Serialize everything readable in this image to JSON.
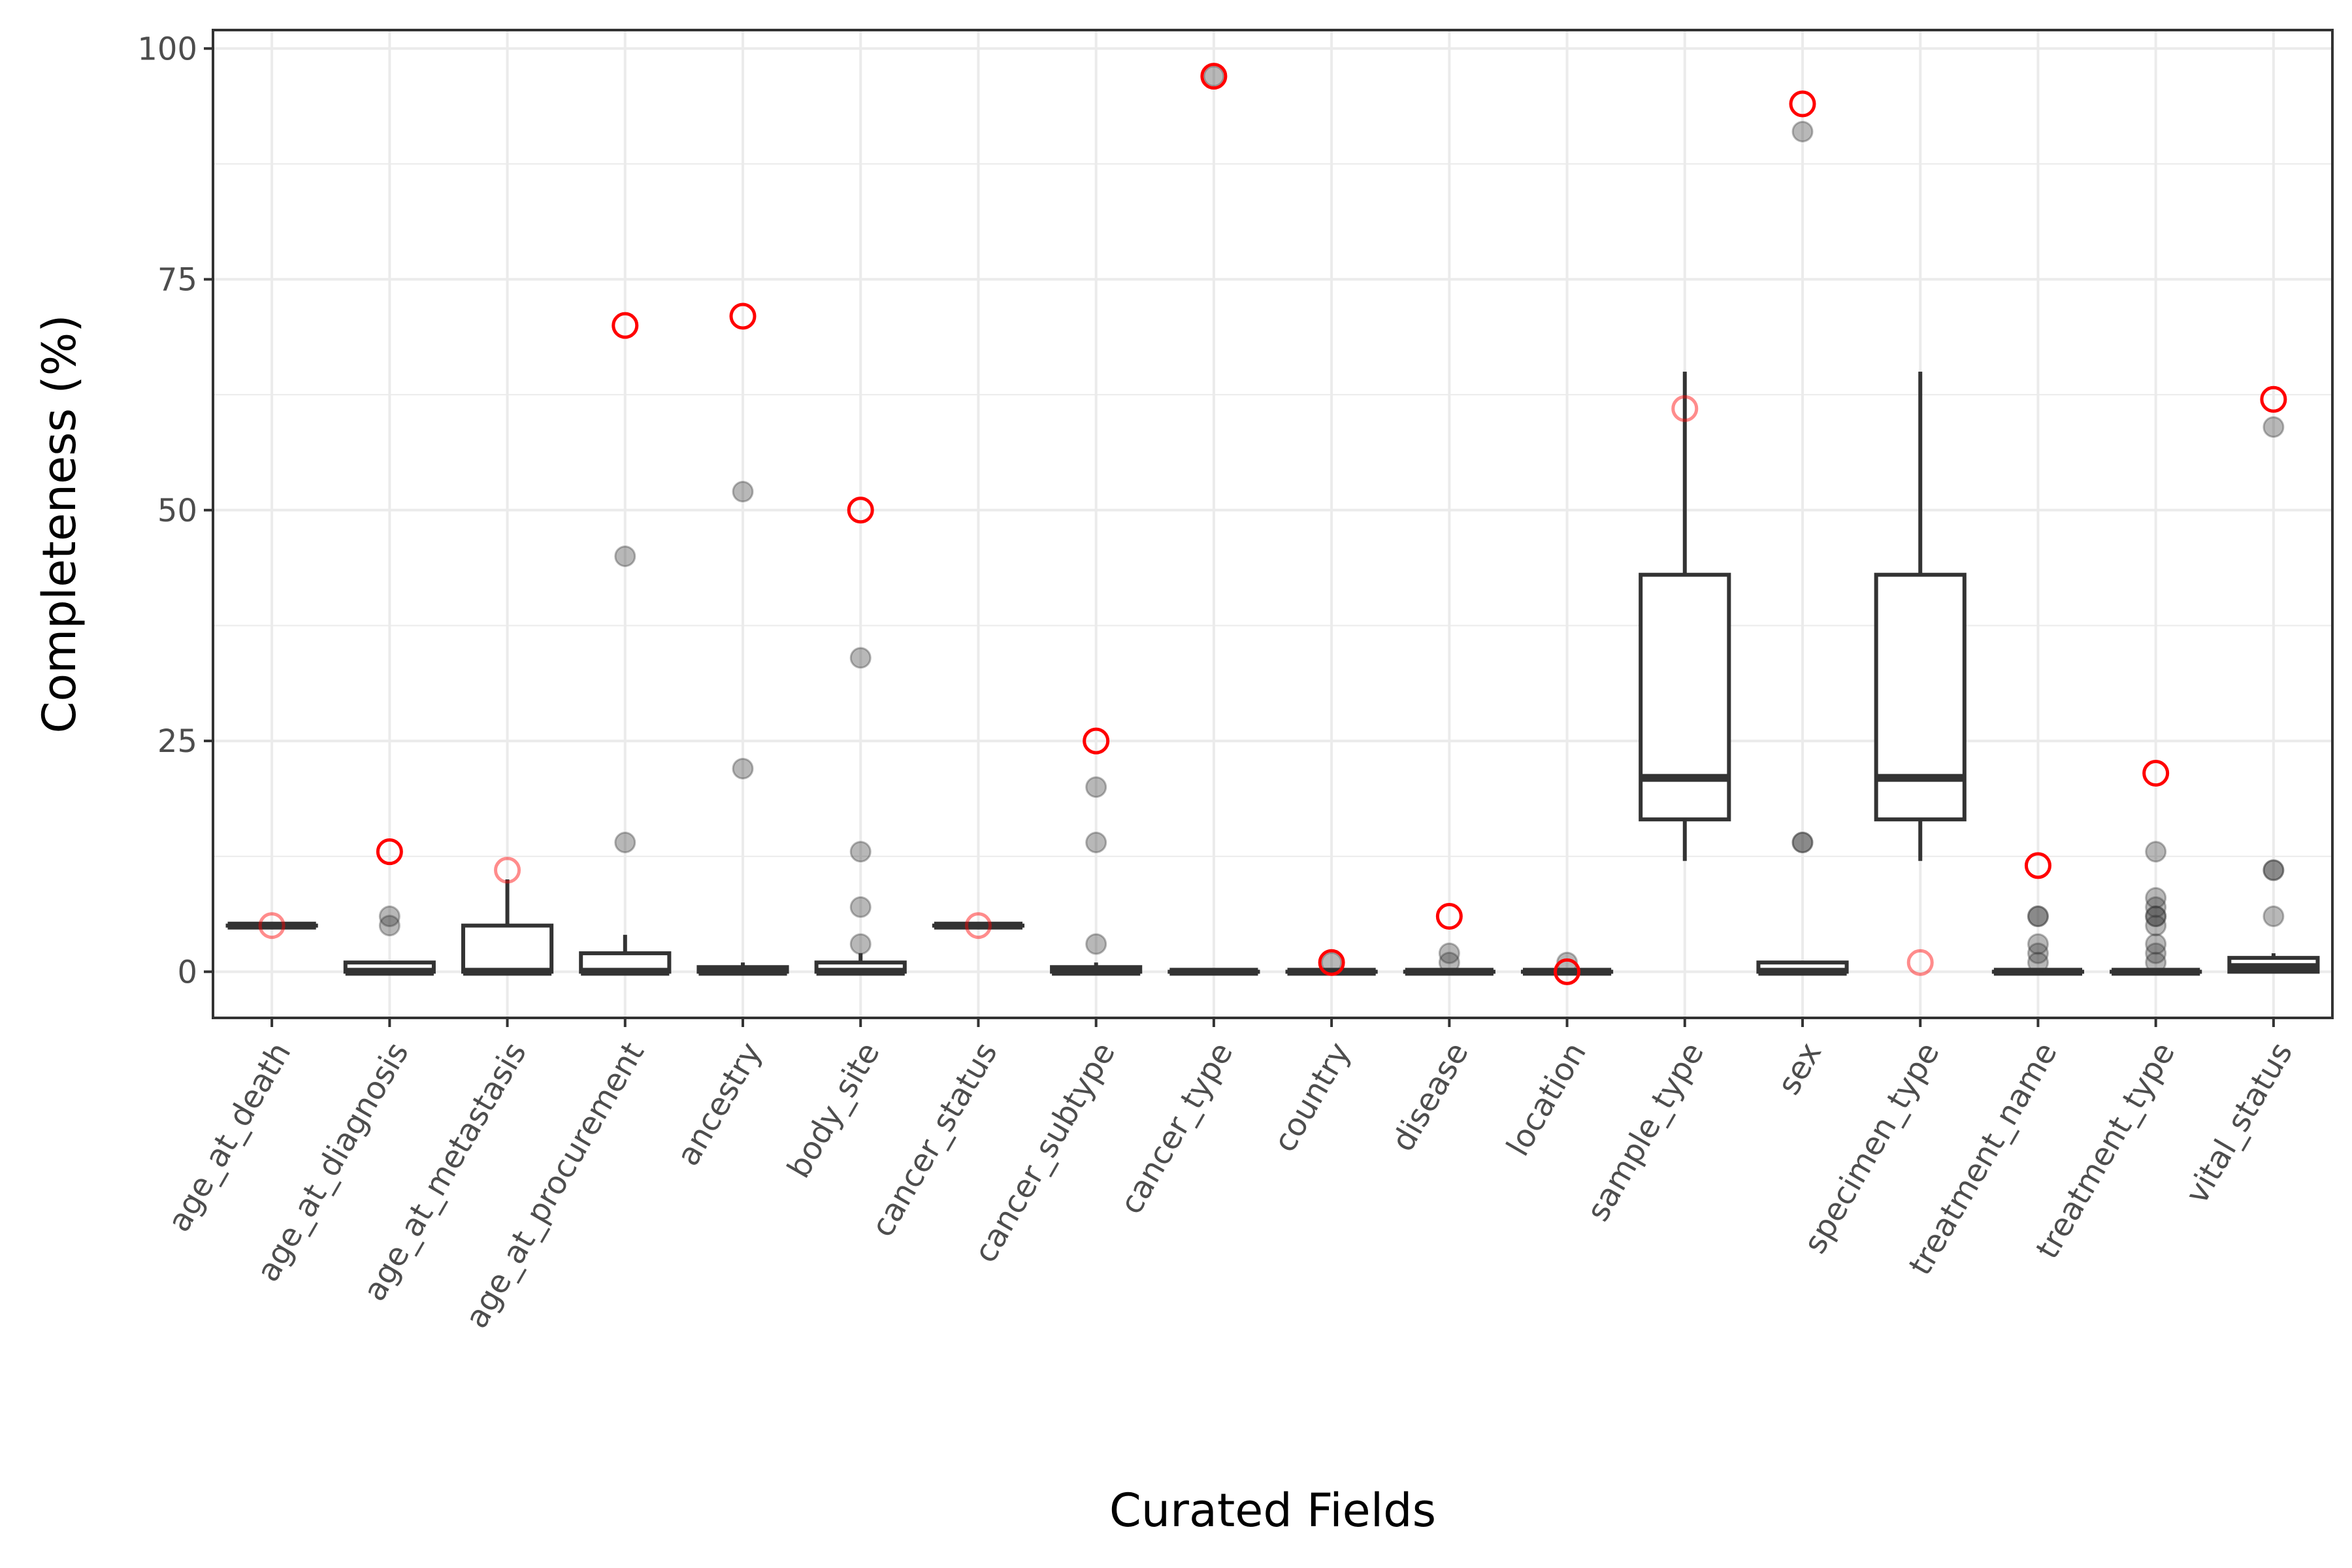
{
  "chart_data": {
    "type": "box",
    "xlabel": "Curated Fields",
    "ylabel": "Completeness (%)",
    "ylim": [
      -5,
      102
    ],
    "yticks": [
      0,
      25,
      50,
      75,
      100
    ],
    "grid": true,
    "categories": [
      "age_at_death",
      "age_at_diagnosis",
      "age_at_metastasis",
      "age_at_procurement",
      "ancestry",
      "body_site",
      "cancer_status",
      "cancer_subtype",
      "cancer_type",
      "country",
      "disease",
      "location",
      "sample_type",
      "sex",
      "specimen_type",
      "treatment_name",
      "treatment_type",
      "vital_status"
    ],
    "boxes": [
      {
        "min": 5,
        "q1": 5,
        "median": 5,
        "q3": 5,
        "max": 5,
        "outliers": []
      },
      {
        "min": 0,
        "q1": 0,
        "median": 0,
        "q3": 1,
        "max": 1,
        "outliers": [
          5,
          6
        ]
      },
      {
        "min": 0,
        "q1": 0,
        "median": 0,
        "q3": 5,
        "max": 10,
        "outliers": []
      },
      {
        "min": 0,
        "q1": 0,
        "median": 0,
        "q3": 2,
        "max": 4,
        "outliers": [
          14,
          45
        ]
      },
      {
        "min": 0,
        "q1": 0,
        "median": 0,
        "q3": 0.5,
        "max": 1,
        "outliers": [
          22,
          52
        ]
      },
      {
        "min": 0,
        "q1": 0,
        "median": 0,
        "q3": 1,
        "max": 2,
        "outliers": [
          3,
          7,
          13,
          34
        ]
      },
      {
        "min": 5,
        "q1": 5,
        "median": 5,
        "q3": 5,
        "max": 5,
        "outliers": []
      },
      {
        "min": 0,
        "q1": 0,
        "median": 0,
        "q3": 0.5,
        "max": 1,
        "outliers": [
          3,
          14,
          20
        ]
      },
      {
        "min": 0,
        "q1": 0,
        "median": 0,
        "q3": 0,
        "max": 0,
        "outliers": [
          97
        ]
      },
      {
        "min": 0,
        "q1": 0,
        "median": 0,
        "q3": 0,
        "max": 0,
        "outliers": [
          1
        ]
      },
      {
        "min": 0,
        "q1": 0,
        "median": 0,
        "q3": 0,
        "max": 0,
        "outliers": [
          1,
          2
        ]
      },
      {
        "min": 0,
        "q1": 0,
        "median": 0,
        "q3": 0,
        "max": 0,
        "outliers": [
          1
        ]
      },
      {
        "min": 12,
        "q1": 16.5,
        "median": 21,
        "q3": 43,
        "max": 65,
        "outliers": []
      },
      {
        "min": 0,
        "q1": 0,
        "median": 0,
        "q3": 1,
        "max": 1,
        "outliers": [
          14,
          14,
          91
        ]
      },
      {
        "min": 12,
        "q1": 16.5,
        "median": 21,
        "q3": 43,
        "max": 65,
        "outliers": []
      },
      {
        "min": 0,
        "q1": 0,
        "median": 0,
        "q3": 0,
        "max": 0,
        "outliers": [
          1,
          2,
          3,
          6,
          6
        ]
      },
      {
        "min": 0,
        "q1": 0,
        "median": 0,
        "q3": 0,
        "max": 0,
        "outliers": [
          1,
          2,
          3,
          5,
          6,
          6,
          7,
          8,
          13
        ]
      },
      {
        "min": 0,
        "q1": 0,
        "median": 0.5,
        "q3": 1.5,
        "max": 2,
        "outliers": [
          6,
          11,
          11,
          59
        ]
      }
    ],
    "highlight_points": [
      {
        "category": "age_at_death",
        "value": 5,
        "style": "faded"
      },
      {
        "category": "age_at_diagnosis",
        "value": 13,
        "style": "solid"
      },
      {
        "category": "age_at_metastasis",
        "value": 11,
        "style": "faded"
      },
      {
        "category": "age_at_procurement",
        "value": 70,
        "style": "solid"
      },
      {
        "category": "ancestry",
        "value": 71,
        "style": "solid"
      },
      {
        "category": "body_site",
        "value": 50,
        "style": "solid"
      },
      {
        "category": "cancer_status",
        "value": 5,
        "style": "faded"
      },
      {
        "category": "cancer_subtype",
        "value": 25,
        "style": "solid"
      },
      {
        "category": "cancer_type",
        "value": 97,
        "style": "solid"
      },
      {
        "category": "country",
        "value": 1,
        "style": "solid"
      },
      {
        "category": "disease",
        "value": 6,
        "style": "solid"
      },
      {
        "category": "location",
        "value": 0,
        "style": "solid"
      },
      {
        "category": "sample_type",
        "value": 61,
        "style": "faded"
      },
      {
        "category": "sex",
        "value": 94,
        "style": "solid"
      },
      {
        "category": "specimen_type",
        "value": 1,
        "style": "faded"
      },
      {
        "category": "treatment_name",
        "value": 11.5,
        "style": "solid"
      },
      {
        "category": "treatment_type",
        "value": 21.5,
        "style": "solid"
      },
      {
        "category": "vital_status",
        "value": 62,
        "style": "solid"
      }
    ],
    "colors": {
      "box_stroke": "#333333",
      "outlier_fill": "#333333",
      "highlight": "#ff0000",
      "grid": "#ebebeb",
      "panel_border": "#333333"
    }
  }
}
